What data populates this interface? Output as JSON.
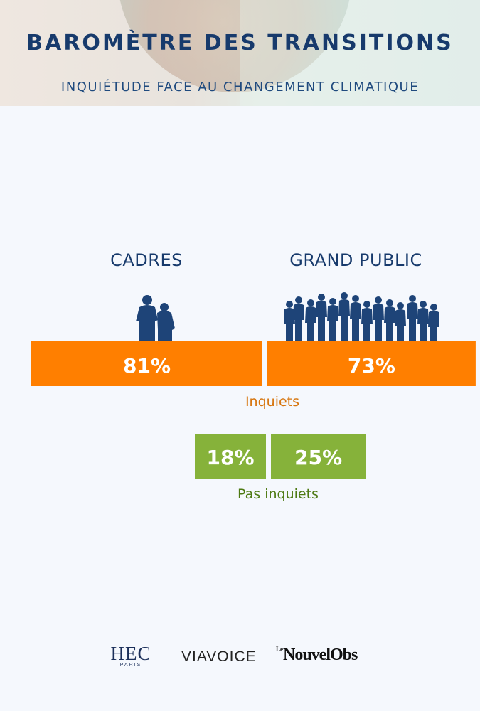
{
  "header": {
    "title": "BAROMÈTRE DES TRANSITIONS",
    "subtitle": "INQUIÉTUDE FACE AU CHANGEMENT CLIMATIQUE"
  },
  "groups": {
    "cadres": "CADRES",
    "grand_public": "GRAND PUBLIC"
  },
  "chart_data": {
    "type": "bar",
    "categories": [
      "CADRES",
      "GRAND PUBLIC"
    ],
    "series": [
      {
        "name": "Inquiets",
        "values": [
          81,
          73
        ],
        "labels": [
          "81%",
          "73%"
        ]
      },
      {
        "name": "Pas inquiets",
        "values": [
          18,
          25
        ],
        "labels": [
          "18%",
          "25%"
        ]
      }
    ],
    "unit": "%",
    "colors": {
      "Inquiets": "#ff7f00",
      "Pas inquiets": "#86b23a"
    },
    "label_colors": {
      "Inquiets": "#d6740c",
      "Pas inquiets": "#4d7a12"
    }
  },
  "footer": {
    "logos": [
      "HEC",
      "PARIS",
      "VIAVOICE",
      "Le",
      "NouvelObs"
    ]
  }
}
